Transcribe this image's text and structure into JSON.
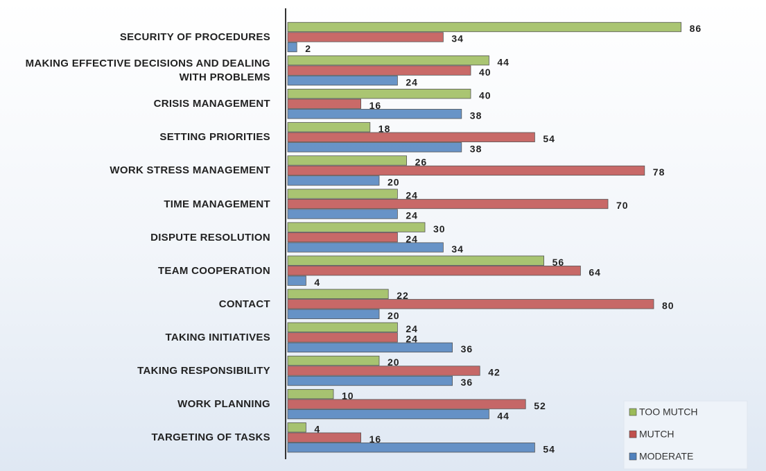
{
  "chart_data": {
    "type": "bar",
    "orientation": "horizontal",
    "categories": [
      "SECURITY OF PROCEDURES",
      "MAKING EFFECTIVE DECISIONS AND DEALING WITH PROBLEMS",
      "CRISIS MANAGEMENT",
      "SETTING PRIORITIES",
      "WORK STRESS MANAGEMENT",
      "TIME MANAGEMENT",
      "DISPUTE RESOLUTION",
      "TEAM COOPERATION",
      "CONTACT",
      "TAKING INITIATIVES",
      "TAKING RESPONSIBILITY",
      "WORK PLANNING",
      "TARGETING OF TASKS"
    ],
    "series": [
      {
        "name": "TOO MUTCH",
        "color": "#9bbb59",
        "values": [
          86,
          44,
          40,
          18,
          26,
          24,
          30,
          56,
          22,
          24,
          20,
          10,
          4
        ]
      },
      {
        "name": "MUTCH",
        "color": "#c0504d",
        "values": [
          34,
          40,
          16,
          54,
          78,
          70,
          24,
          64,
          80,
          24,
          42,
          52,
          16
        ]
      },
      {
        "name": "MODERATE",
        "color": "#4f81bd",
        "values": [
          2,
          24,
          38,
          38,
          20,
          24,
          34,
          4,
          20,
          36,
          36,
          44,
          54
        ]
      }
    ],
    "xlim": [
      0,
      100
    ],
    "legend": "lower right"
  }
}
